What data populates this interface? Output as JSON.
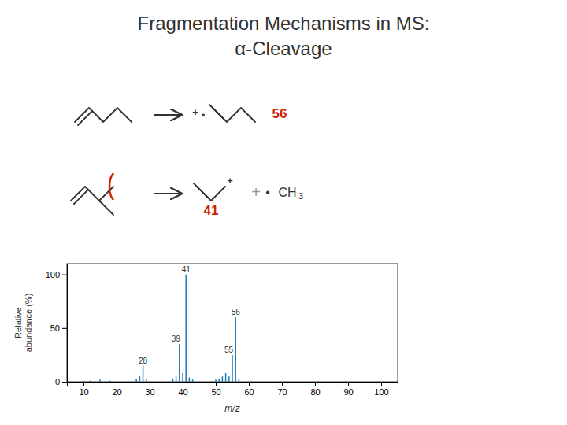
{
  "chart_data": {
    "type": "stem",
    "title": "Fragmentation Mechanisms in MS:",
    "subtitle": "α-Cleavage",
    "annotations": [
      {
        "text": "+"
      },
      {
        "text": "•"
      },
      {
        "text": "56",
        "color": "#cc2200"
      },
      {
        "text": "+"
      },
      {
        "text": "+",
        "color": "#999999"
      },
      {
        "text": "•"
      },
      {
        "text": "CH"
      },
      {
        "text": "3"
      },
      {
        "text": "41",
        "color": "#cc2200"
      }
    ],
    "x": [
      10,
      12,
      15,
      18,
      26,
      27,
      28,
      29,
      37,
      38,
      39,
      40,
      41,
      42,
      43,
      50,
      51,
      52,
      53,
      54,
      55,
      56,
      57
    ],
    "values": [
      1,
      1,
      2,
      1,
      3,
      5,
      15,
      3,
      3,
      5,
      35,
      8,
      100,
      4,
      2,
      2,
      3,
      5,
      8,
      5,
      25,
      60,
      3
    ],
    "peak_labels": [
      28,
      39,
      41,
      55,
      56
    ],
    "xlabel": "m/z",
    "ylabel": "Relative\nabundance (%)",
    "xlim": [
      5,
      105
    ],
    "ylim": [
      0,
      110
    ],
    "xticks": [
      10,
      20,
      30,
      40,
      50,
      60,
      70,
      80,
      90,
      100
    ],
    "yticks": [
      0,
      50,
      100
    ],
    "grid": false
  }
}
